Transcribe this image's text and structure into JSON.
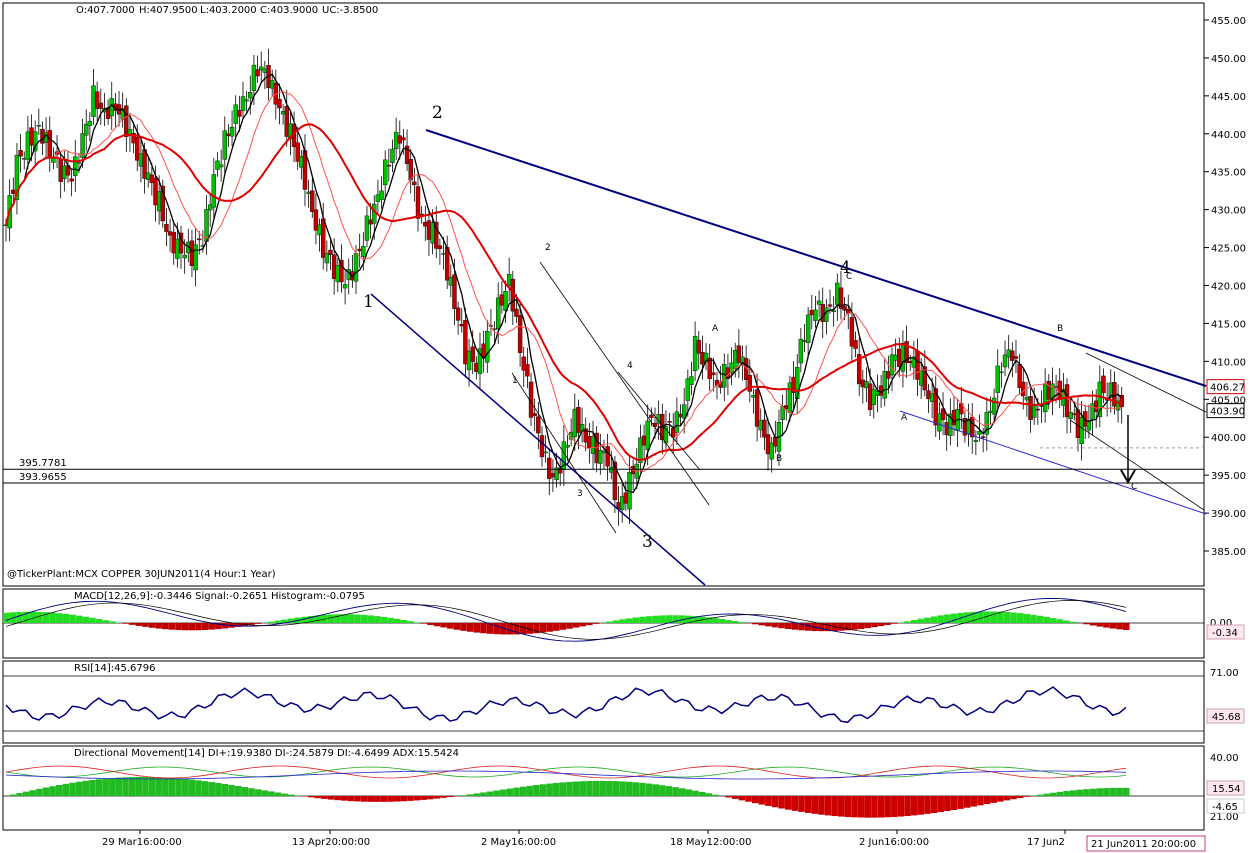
{
  "chart_data": [
    {
      "type": "candlestick",
      "title": "",
      "ohlc_header": {
        "open": "O:407.7000",
        "high": "H:407.9500",
        "low": "L:403.2000",
        "close": "C:403.9000",
        "change": "UC:-3.8500"
      },
      "source_label": "@TickerPlant:MCX COPPER 30JUN2011(4 Hour:1 Year)",
      "ylim": [
        380,
        457
      ],
      "y_ticks": [
        "455.00",
        "450.00",
        "445.00",
        "440.00",
        "435.00",
        "430.00",
        "425.00",
        "420.00",
        "415.00",
        "410.00",
        "405.00",
        "400.00",
        "395.00",
        "390.00",
        "385.00"
      ],
      "horizontal_levels": [
        {
          "label": "395.7781",
          "value": 395.78
        },
        {
          "label": "393.9655",
          "value": 393.97
        }
      ],
      "price_flags": [
        {
          "label": "406.27",
          "value": 406.27,
          "color": "#d00000"
        },
        {
          "label": "403.90",
          "value": 403.9,
          "color": "#000000"
        }
      ],
      "close_path": [
        428,
        436,
        439,
        441,
        438,
        435,
        434,
        439,
        445,
        443,
        444,
        441,
        437,
        434,
        431,
        426,
        425,
        424,
        426,
        434,
        439,
        443,
        445,
        449,
        447,
        443,
        440,
        436,
        430,
        425,
        422,
        420,
        423,
        428,
        432,
        437,
        440,
        434,
        428,
        427,
        424,
        418,
        411,
        409,
        413,
        417,
        421,
        412,
        404,
        398,
        394,
        398,
        403,
        400,
        398,
        397,
        390,
        394,
        399,
        403,
        401,
        401,
        404,
        412,
        410,
        407,
        409,
        411,
        406,
        401,
        398,
        404,
        407,
        414,
        417,
        416,
        419,
        416,
        408,
        405,
        406,
        410,
        411,
        410,
        407,
        403,
        401,
        403,
        401,
        400,
        404,
        410,
        411,
        405,
        403,
        406,
        407,
        404,
        401,
        402,
        406,
        406,
        404
      ],
      "close_labels": [],
      "wave_labels": [
        {
          "text": "1",
          "size": "big"
        },
        {
          "text": "2",
          "size": "big"
        },
        {
          "text": "3",
          "size": "big"
        },
        {
          "text": "4",
          "size": "big"
        },
        {
          "text": "2",
          "size": "small"
        },
        {
          "text": "1",
          "size": "small"
        },
        {
          "text": "3",
          "size": "small"
        },
        {
          "text": "4",
          "size": "small"
        },
        {
          "text": "A",
          "size": "small"
        },
        {
          "text": "B",
          "size": "small"
        },
        {
          "text": "C",
          "size": "small"
        },
        {
          "text": "A",
          "size": "small"
        },
        {
          "text": "B",
          "size": "small"
        },
        {
          "text": "C",
          "size": "small"
        }
      ],
      "x_tick_labels": [
        "29 Mar16:00:00",
        "13 Apr20:00:00",
        "2 May16:00:00",
        "18 May12:00:00",
        "2 Jun16:00:00",
        "17 Jun2"
      ],
      "x_cursor_label": "21 Jun2011 20:00:00"
    },
    {
      "type": "line",
      "title": "MACD[12,26,9]:-0.3446 Signal:-0.2651 Histogram:-0.0795",
      "y_ticks": [
        "0.00"
      ],
      "value_flag": "-0.34"
    },
    {
      "type": "line",
      "title": "RSI[14]:45.6796",
      "y_ticks": [
        "71.00"
      ],
      "value_flag": "45.68"
    },
    {
      "type": "line",
      "title": "Directional Movement[14]  DI+:19.9380 DI-:24.5879 DI:-4.6499 ADX:15.5424",
      "y_ticks": [
        "40.00",
        "21.00"
      ],
      "value_flags": [
        "15.54",
        "-4.65"
      ]
    }
  ],
  "colors": {
    "up": "#00c000",
    "down": "#c00000",
    "trendline": "#000080",
    "channel": "#2a2ad0",
    "ma_fast": "#000000",
    "ma_mid": "#ff5050",
    "ma_slow": "#e00000"
  }
}
